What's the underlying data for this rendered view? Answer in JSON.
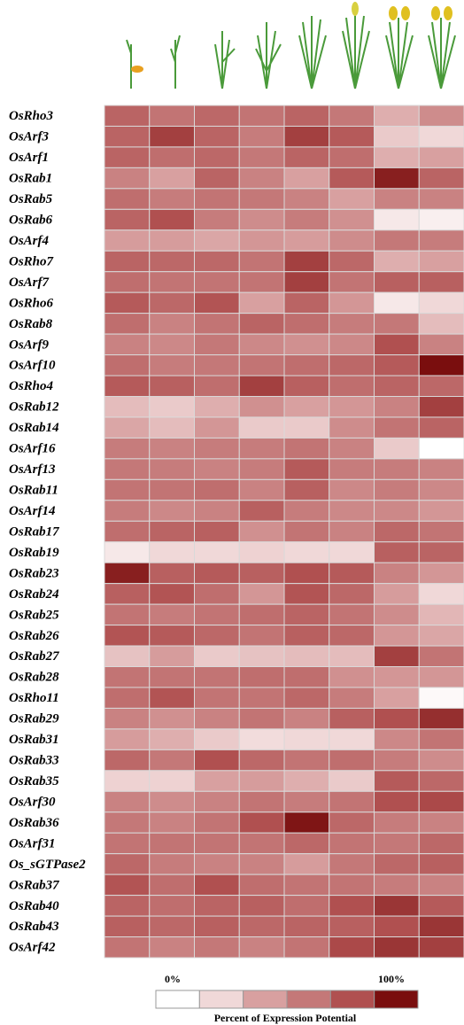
{
  "chart_data": {
    "type": "heatmap",
    "rows": [
      "OsRho3",
      "OsArf3",
      "OsArf1",
      "OsRab1",
      "OsRab5",
      "OsRab6",
      "OsArf4",
      "OsRho7",
      "OsArf7",
      "OsRho6",
      "OsRab8",
      "OsArf9",
      "OsArf10",
      "OsRho4",
      "OsRab12",
      "OsRab14",
      "OsArf16",
      "OsArf13",
      "OsRab11",
      "OsArf14",
      "OsRab17",
      "OsRab19",
      "OsRab23",
      "OsRab24",
      "OsRab25",
      "OsRab26",
      "OsRab27",
      "OsRab28",
      "OsRho11",
      "OsRab29",
      "OsRab31",
      "OsRab33",
      "OsRab35",
      "OsArf30",
      "OsRab36",
      "OsArf31",
      "Os_sGTPase2",
      "OsRab37",
      "OsRab40",
      "OsRab43",
      "OsArf42"
    ],
    "values": [
      [
        70,
        62,
        68,
        62,
        70,
        60,
        35,
        50
      ],
      [
        70,
        85,
        70,
        58,
        85,
        75,
        25,
        20
      ],
      [
        70,
        65,
        68,
        60,
        70,
        65,
        35,
        40
      ],
      [
        55,
        40,
        70,
        55,
        40,
        75,
        95,
        70
      ],
      [
        65,
        58,
        62,
        60,
        55,
        40,
        55,
        55
      ],
      [
        70,
        80,
        58,
        50,
        58,
        48,
        12,
        8
      ],
      [
        42,
        42,
        38,
        45,
        42,
        50,
        60,
        58
      ],
      [
        70,
        68,
        68,
        62,
        85,
        68,
        35,
        40
      ],
      [
        65,
        62,
        62,
        62,
        85,
        62,
        72,
        72
      ],
      [
        75,
        68,
        78,
        40,
        70,
        45,
        12,
        20
      ],
      [
        65,
        55,
        62,
        70,
        65,
        58,
        60,
        30
      ],
      [
        55,
        52,
        60,
        52,
        48,
        52,
        80,
        55
      ],
      [
        65,
        58,
        60,
        62,
        65,
        68,
        75,
        100
      ],
      [
        75,
        72,
        65,
        85,
        72,
        65,
        70,
        68
      ],
      [
        30,
        25,
        35,
        48,
        40,
        45,
        55,
        85
      ],
      [
        38,
        30,
        45,
        25,
        25,
        50,
        62,
        70
      ],
      [
        58,
        55,
        58,
        58,
        62,
        55,
        25,
        0
      ],
      [
        60,
        58,
        55,
        58,
        75,
        58,
        58,
        55
      ],
      [
        62,
        62,
        65,
        55,
        72,
        52,
        58,
        52
      ],
      [
        58,
        52,
        55,
        72,
        58,
        52,
        52,
        45
      ],
      [
        65,
        70,
        72,
        48,
        62,
        55,
        68,
        62
      ],
      [
        12,
        20,
        20,
        22,
        20,
        20,
        72,
        70
      ],
      [
        95,
        72,
        75,
        72,
        80,
        75,
        55,
        45
      ],
      [
        72,
        78,
        65,
        45,
        78,
        68,
        42,
        20
      ],
      [
        62,
        58,
        62,
        65,
        70,
        62,
        50,
        32
      ],
      [
        78,
        75,
        68,
        62,
        72,
        68,
        45,
        38
      ],
      [
        28,
        42,
        25,
        28,
        30,
        30,
        85,
        62
      ],
      [
        62,
        62,
        62,
        65,
        65,
        48,
        45,
        45
      ],
      [
        65,
        78,
        62,
        62,
        68,
        58,
        40,
        3
      ],
      [
        55,
        48,
        55,
        62,
        55,
        72,
        80,
        90
      ],
      [
        42,
        35,
        25,
        18,
        20,
        20,
        52,
        62
      ],
      [
        68,
        60,
        80,
        68,
        62,
        65,
        58,
        50
      ],
      [
        22,
        22,
        40,
        42,
        35,
        25,
        75,
        68
      ],
      [
        55,
        50,
        55,
        62,
        58,
        62,
        80,
        82
      ],
      [
        60,
        55,
        62,
        80,
        98,
        68,
        58,
        55
      ],
      [
        62,
        62,
        62,
        62,
        68,
        62,
        60,
        68
      ],
      [
        68,
        58,
        55,
        55,
        42,
        60,
        68,
        72
      ],
      [
        78,
        65,
        80,
        65,
        62,
        62,
        58,
        55
      ],
      [
        70,
        65,
        70,
        72,
        65,
        80,
        88,
        75
      ],
      [
        72,
        68,
        72,
        68,
        70,
        72,
        80,
        88
      ],
      [
        62,
        55,
        60,
        55,
        62,
        82,
        88,
        85
      ]
    ],
    "zlim": [
      0,
      100
    ],
    "colorscale": [
      "#ffffff",
      "#f0d8d8",
      "#d8a0a0",
      "#c47878",
      "#b05050",
      "#7a0e0e"
    ],
    "legend_ticks": [
      {
        "value": 0,
        "label": "0%"
      },
      {
        "value": 100,
        "label": "100%"
      }
    ],
    "legend_title": "Percent of Expression Potential"
  }
}
